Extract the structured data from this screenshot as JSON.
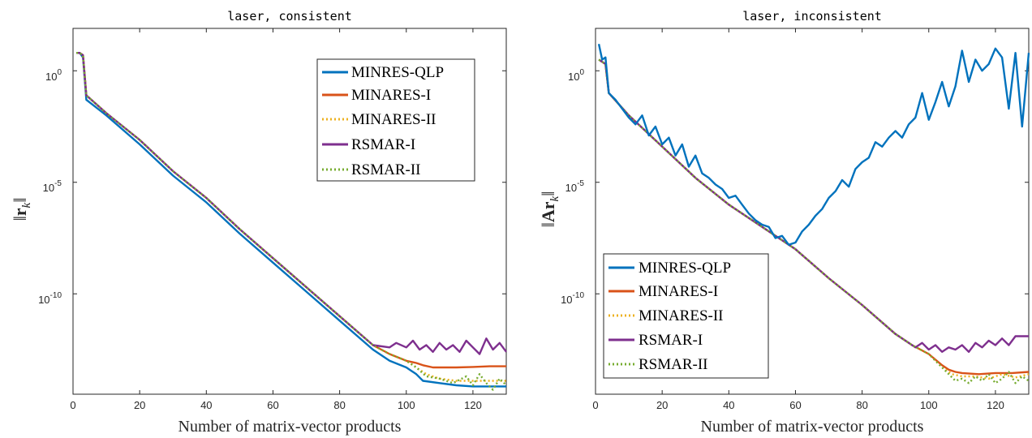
{
  "chart_data": [
    {
      "type": "line",
      "title": "laser, consistent",
      "xlabel": "Number of matrix-vector products",
      "ylabel": "||r_k||",
      "ylabel_parts": [
        "‖",
        "r",
        "k",
        "‖"
      ],
      "xlim": [
        0,
        130
      ],
      "ylim_log10": [
        -14.5,
        1.9
      ],
      "yscale": "log",
      "x_ticks": [
        "0",
        "20",
        "40",
        "60",
        "80",
        "100",
        "120"
      ],
      "y_ticks": [
        {
          "base": "10",
          "exp": "0"
        },
        {
          "base": "10",
          "exp": "-5"
        },
        {
          "base": "10",
          "exp": "-10"
        }
      ],
      "legend_position": "top-right",
      "series": [
        {
          "name": "MINRES-QLP",
          "color": "#0072BD",
          "dash": "solid",
          "x": [
            1,
            2,
            3,
            4,
            10,
            20,
            30,
            40,
            50,
            60,
            70,
            80,
            90,
            95,
            100,
            103,
            105,
            110,
            115,
            120,
            125,
            130
          ],
          "log10y": [
            0.8,
            0.8,
            0.6,
            -1.3,
            -2.0,
            -3.3,
            -4.7,
            -5.9,
            -7.3,
            -8.6,
            -9.9,
            -11.2,
            -12.5,
            -13.0,
            -13.3,
            -13.6,
            -13.9,
            -14.0,
            -14.1,
            -14.15,
            -14.15,
            -14.15
          ]
        },
        {
          "name": "MINARES-I",
          "color": "#D95319",
          "dash": "solid",
          "x": [
            1,
            2,
            3,
            4,
            10,
            20,
            30,
            40,
            50,
            60,
            70,
            80,
            90,
            95,
            100,
            103,
            105,
            108,
            115,
            120,
            125,
            130
          ],
          "log10y": [
            0.8,
            0.8,
            0.7,
            -1.1,
            -1.9,
            -3.1,
            -4.5,
            -5.7,
            -7.1,
            -8.4,
            -9.7,
            -11.0,
            -12.3,
            -12.7,
            -13.0,
            -13.1,
            -13.2,
            -13.3,
            -13.3,
            -13.28,
            -13.25,
            -13.25
          ]
        },
        {
          "name": "MINARES-II",
          "color": "#EDB120",
          "dash": "dot",
          "x": [
            1,
            2,
            3,
            4,
            10,
            20,
            30,
            40,
            50,
            60,
            70,
            80,
            90,
            95,
            100,
            103,
            106,
            110,
            115,
            120,
            125,
            130
          ],
          "log10y": [
            0.8,
            0.8,
            0.7,
            -1.1,
            -1.9,
            -3.1,
            -4.5,
            -5.7,
            -7.1,
            -8.4,
            -9.7,
            -11.0,
            -12.3,
            -12.7,
            -13.0,
            -13.3,
            -13.6,
            -13.8,
            -13.9,
            -13.9,
            -13.9,
            -13.9
          ]
        },
        {
          "name": "RSMAR-I",
          "color": "#7E2F8E",
          "dash": "solid",
          "x": [
            1,
            2,
            3,
            4,
            10,
            20,
            30,
            40,
            50,
            60,
            70,
            80,
            90,
            95,
            97,
            100,
            102,
            104,
            106,
            108,
            110,
            112,
            114,
            116,
            118,
            120,
            122,
            124,
            126,
            128,
            130
          ],
          "log10y": [
            0.8,
            0.8,
            0.7,
            -1.1,
            -1.9,
            -3.1,
            -4.5,
            -5.7,
            -7.1,
            -8.4,
            -9.7,
            -11.0,
            -12.3,
            -12.4,
            -12.2,
            -12.4,
            -12.1,
            -12.5,
            -12.3,
            -12.6,
            -12.2,
            -12.5,
            -12.3,
            -12.6,
            -12.1,
            -12.4,
            -12.7,
            -12.0,
            -12.5,
            -12.2,
            -12.6
          ]
        },
        {
          "name": "RSMAR-II",
          "color": "#77AC30",
          "dash": "dot",
          "x": [
            1,
            2,
            3,
            4,
            10,
            20,
            30,
            40,
            50,
            60,
            70,
            80,
            90,
            95,
            100,
            103,
            106,
            110,
            114,
            118,
            120,
            122,
            124,
            126,
            128,
            130
          ],
          "log10y": [
            0.8,
            0.8,
            0.7,
            -1.1,
            -1.9,
            -3.1,
            -4.5,
            -5.7,
            -7.1,
            -8.4,
            -9.7,
            -11.0,
            -12.3,
            -12.7,
            -13.0,
            -13.3,
            -13.7,
            -13.8,
            -14.0,
            -13.7,
            -14.1,
            -13.6,
            -14.0,
            -14.3,
            -13.8,
            -14.1
          ]
        }
      ]
    },
    {
      "type": "line",
      "title": "laser, inconsistent",
      "xlabel": "Number of matrix-vector products",
      "ylabel": "||Ar_k||",
      "ylabel_parts": [
        "‖",
        "Ar",
        "k",
        "‖"
      ],
      "xlim": [
        0,
        130
      ],
      "ylim_log10": [
        -14.5,
        1.9
      ],
      "yscale": "log",
      "x_ticks": [
        "0",
        "20",
        "40",
        "60",
        "80",
        "100",
        "120"
      ],
      "y_ticks": [
        {
          "base": "10",
          "exp": "0"
        },
        {
          "base": "10",
          "exp": "-5"
        },
        {
          "base": "10",
          "exp": "-10"
        }
      ],
      "legend_position": "bottom-left",
      "series": [
        {
          "name": "MINRES-QLP",
          "color": "#0072BD",
          "dash": "solid",
          "x": [
            1,
            2,
            3,
            4,
            6,
            8,
            10,
            12,
            14,
            16,
            18,
            20,
            22,
            24,
            26,
            28,
            30,
            32,
            34,
            36,
            38,
            40,
            42,
            44,
            46,
            48,
            50,
            52,
            54,
            56,
            58,
            60,
            62,
            64,
            66,
            68,
            70,
            72,
            74,
            76,
            78,
            80,
            82,
            84,
            86,
            88,
            90,
            92,
            94,
            96,
            98,
            100,
            102,
            104,
            106,
            108,
            110,
            111,
            112,
            114,
            116,
            118,
            120,
            122,
            124,
            126,
            128,
            130
          ],
          "log10y": [
            1.2,
            0.5,
            0.6,
            -1.0,
            -1.3,
            -1.7,
            -2.1,
            -2.4,
            -2.0,
            -2.9,
            -2.5,
            -3.3,
            -3.0,
            -3.8,
            -3.3,
            -4.3,
            -3.8,
            -4.6,
            -4.8,
            -5.1,
            -5.3,
            -5.7,
            -5.6,
            -6.0,
            -6.4,
            -6.7,
            -6.9,
            -7.0,
            -7.5,
            -7.4,
            -7.8,
            -7.7,
            -7.2,
            -6.9,
            -6.5,
            -6.2,
            -5.7,
            -5.4,
            -4.9,
            -5.2,
            -4.4,
            -4.1,
            -3.9,
            -3.2,
            -3.4,
            -3.0,
            -2.7,
            -3.0,
            -2.4,
            -2.1,
            -1.0,
            -2.2,
            -1.4,
            -0.5,
            -1.6,
            -0.7,
            0.9,
            0.2,
            -0.5,
            0.5,
            0.0,
            0.3,
            1.0,
            0.6,
            -1.7,
            0.8,
            -2.5,
            0.8
          ]
        },
        {
          "name": "MINARES-I",
          "color": "#D95319",
          "dash": "solid",
          "x": [
            1,
            2,
            3,
            4,
            10,
            20,
            30,
            40,
            50,
            60,
            70,
            80,
            90,
            95,
            100,
            104,
            106,
            108,
            110,
            115,
            120,
            125,
            130
          ],
          "log10y": [
            0.5,
            0.4,
            0.3,
            -1.0,
            -2.0,
            -3.4,
            -4.8,
            -6.0,
            -7.0,
            -8.0,
            -9.3,
            -10.5,
            -11.8,
            -12.3,
            -12.7,
            -13.2,
            -13.4,
            -13.5,
            -13.55,
            -13.6,
            -13.55,
            -13.55,
            -13.5
          ]
        },
        {
          "name": "MINARES-II",
          "color": "#EDB120",
          "dash": "dot",
          "x": [
            1,
            2,
            3,
            4,
            10,
            20,
            30,
            40,
            50,
            60,
            70,
            80,
            90,
            95,
            100,
            104,
            107,
            110,
            114,
            118,
            122,
            126,
            130
          ],
          "log10y": [
            0.5,
            0.4,
            0.3,
            -1.0,
            -2.0,
            -3.4,
            -4.8,
            -6.0,
            -7.0,
            -8.0,
            -9.3,
            -10.5,
            -11.8,
            -12.3,
            -12.7,
            -13.3,
            -13.6,
            -13.7,
            -13.7,
            -13.8,
            -13.6,
            -13.75,
            -13.6
          ]
        },
        {
          "name": "RSMAR-I",
          "color": "#7E2F8E",
          "dash": "solid",
          "x": [
            1,
            2,
            3,
            4,
            10,
            20,
            30,
            40,
            50,
            60,
            70,
            80,
            90,
            92,
            94,
            96,
            98,
            100,
            102,
            104,
            106,
            108,
            110,
            112,
            114,
            116,
            118,
            120,
            122,
            124,
            126,
            128,
            130
          ],
          "log10y": [
            0.5,
            0.4,
            0.3,
            -1.0,
            -2.0,
            -3.4,
            -4.8,
            -6.0,
            -7.0,
            -8.0,
            -9.3,
            -10.5,
            -11.8,
            -12.0,
            -12.2,
            -12.4,
            -12.2,
            -12.5,
            -12.3,
            -12.6,
            -12.4,
            -12.5,
            -12.3,
            -12.6,
            -12.2,
            -12.4,
            -12.1,
            -12.3,
            -12.0,
            -12.3,
            -11.9,
            -11.9,
            -11.9
          ]
        },
        {
          "name": "RSMAR-II",
          "color": "#77AC30",
          "dash": "dot",
          "x": [
            1,
            2,
            3,
            4,
            10,
            20,
            30,
            40,
            50,
            60,
            70,
            80,
            90,
            95,
            100,
            104,
            106,
            108,
            110,
            112,
            114,
            116,
            118,
            120,
            122,
            124,
            126,
            128,
            130
          ],
          "log10y": [
            0.5,
            0.4,
            0.3,
            -1.0,
            -2.0,
            -3.4,
            -4.8,
            -6.0,
            -7.0,
            -8.0,
            -9.3,
            -10.5,
            -11.8,
            -12.3,
            -12.7,
            -13.3,
            -13.6,
            -13.9,
            -13.8,
            -14.0,
            -13.7,
            -13.9,
            -13.6,
            -14.0,
            -13.8,
            -13.5,
            -14.0,
            -13.7,
            -13.9
          ]
        }
      ]
    }
  ]
}
